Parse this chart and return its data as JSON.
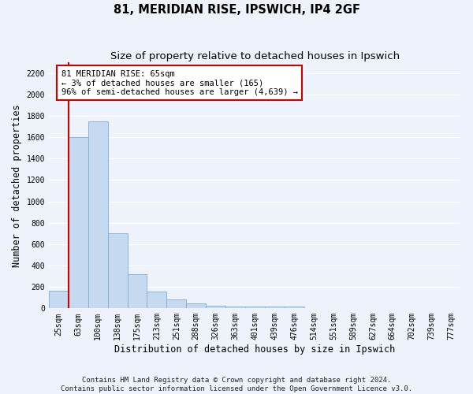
{
  "title1": "81, MERIDIAN RISE, IPSWICH, IP4 2GF",
  "title2": "Size of property relative to detached houses in Ipswich",
  "xlabel": "Distribution of detached houses by size in Ipswich",
  "ylabel": "Number of detached properties",
  "bar_labels": [
    "25sqm",
    "63sqm",
    "100sqm",
    "138sqm",
    "175sqm",
    "213sqm",
    "251sqm",
    "288sqm",
    "326sqm",
    "363sqm",
    "401sqm",
    "439sqm",
    "476sqm",
    "514sqm",
    "551sqm",
    "589sqm",
    "627sqm",
    "664sqm",
    "702sqm",
    "739sqm",
    "777sqm"
  ],
  "bar_values": [
    165,
    1600,
    1750,
    700,
    320,
    160,
    80,
    45,
    25,
    20,
    15,
    15,
    15,
    0,
    0,
    0,
    0,
    0,
    0,
    0,
    0
  ],
  "bar_color": "#c5d9f0",
  "bar_edge_color": "#7bafd4",
  "vline_color": "#cc0000",
  "annotation_text": "81 MERIDIAN RISE: 65sqm\n← 3% of detached houses are smaller (165)\n96% of semi-detached houses are larger (4,639) →",
  "annotation_box_color": "#ffffff",
  "annotation_box_edge": "#cc0000",
  "ylim": [
    0,
    2300
  ],
  "yticks": [
    0,
    200,
    400,
    600,
    800,
    1000,
    1200,
    1400,
    1600,
    1800,
    2000,
    2200
  ],
  "footer_text": "Contains HM Land Registry data © Crown copyright and database right 2024.\nContains public sector information licensed under the Open Government Licence v3.0.",
  "bg_color": "#eef2fa",
  "grid_color": "#ffffff",
  "title_fontsize": 10.5,
  "subtitle_fontsize": 9.5,
  "tick_fontsize": 7,
  "axis_label_fontsize": 8.5,
  "footer_fontsize": 6.5,
  "ann_fontsize": 7.5
}
